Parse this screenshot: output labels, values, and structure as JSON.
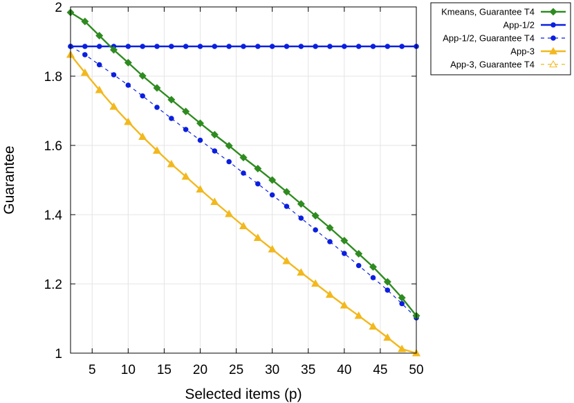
{
  "chart_data": {
    "type": "line",
    "title": "",
    "xlabel": "Selected items (p)",
    "ylabel": "Guarantee",
    "xlim": [
      2,
      50
    ],
    "ylim": [
      1,
      2
    ],
    "xticks": [
      5,
      10,
      15,
      20,
      25,
      30,
      35,
      40,
      45,
      50
    ],
    "yticks": [
      1,
      1.2,
      1.4,
      1.6,
      1.8,
      2
    ],
    "grid": true,
    "legend_position": "top-right-outside",
    "x": [
      2,
      4,
      6,
      8,
      10,
      12,
      14,
      16,
      18,
      20,
      22,
      24,
      26,
      28,
      30,
      32,
      34,
      36,
      38,
      40,
      42,
      44,
      46,
      48,
      50
    ],
    "series": [
      {
        "name": "Kmeans, Guarantee T4",
        "color": "#2e8b20",
        "marker": "diamond",
        "line": "solid",
        "values": [
          1.984,
          1.958,
          1.917,
          1.876,
          1.839,
          1.801,
          1.766,
          1.732,
          1.698,
          1.664,
          1.631,
          1.599,
          1.565,
          1.533,
          1.5,
          1.466,
          1.431,
          1.397,
          1.362,
          1.325,
          1.287,
          1.249,
          1.206,
          1.16,
          1.108
        ]
      },
      {
        "name": "App-1/2",
        "color": "#0a1fe0",
        "marker": "circle",
        "line": "solid",
        "values": [
          1.886,
          1.886,
          1.886,
          1.886,
          1.886,
          1.886,
          1.886,
          1.886,
          1.886,
          1.886,
          1.886,
          1.886,
          1.886,
          1.886,
          1.886,
          1.886,
          1.886,
          1.886,
          1.886,
          1.886,
          1.886,
          1.886,
          1.886,
          1.886,
          1.886
        ]
      },
      {
        "name": "App-1/2, Guarantee T4",
        "color": "#0a1fe0",
        "marker": "circle",
        "line": "dashed",
        "values": [
          1.886,
          1.862,
          1.833,
          1.804,
          1.774,
          1.743,
          1.71,
          1.678,
          1.646,
          1.615,
          1.584,
          1.553,
          1.52,
          1.489,
          1.457,
          1.424,
          1.39,
          1.356,
          1.322,
          1.288,
          1.253,
          1.218,
          1.182,
          1.143,
          1.102
        ]
      },
      {
        "name": "App-3",
        "color": "#f2b81e",
        "marker": "triangle",
        "line": "solid",
        "values": [
          1.862,
          1.81,
          1.76,
          1.712,
          1.668,
          1.625,
          1.585,
          1.546,
          1.51,
          1.473,
          1.437,
          1.402,
          1.367,
          1.333,
          1.3,
          1.266,
          1.233,
          1.201,
          1.169,
          1.138,
          1.108,
          1.077,
          1.045,
          1.012,
          1.0
        ]
      },
      {
        "name": "App-3, Guarantee T4",
        "color": "#f2b81e",
        "marker": "triangle-open",
        "line": "dashed",
        "values": [
          1.862,
          1.81,
          1.76,
          1.712,
          1.668,
          1.625,
          1.585,
          1.546,
          1.51,
          1.473,
          1.437,
          1.402,
          1.367,
          1.333,
          1.3,
          1.266,
          1.233,
          1.201,
          1.169,
          1.138,
          1.108,
          1.077,
          1.045,
          1.012,
          1.0
        ]
      }
    ]
  }
}
